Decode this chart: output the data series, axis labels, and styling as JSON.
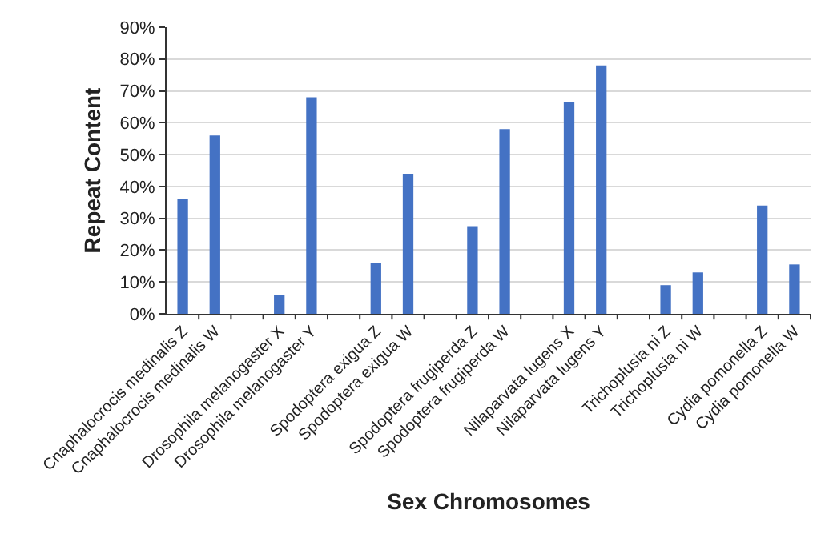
{
  "chart_data": {
    "type": "bar",
    "xlabel": "Sex Chromosomes",
    "ylabel": "Repeat Content",
    "categories": [
      "Cnaphalocrocis medinalis Z",
      "Cnaphalocrocis medinalis W",
      null,
      "Drosophila melanogaster X",
      "Drosophila melanogaster Y",
      null,
      "Spodoptera exigua Z",
      "Spodoptera exigua W",
      null,
      "Spodoptera frugiperda Z",
      "Spodoptera frugiperda W",
      null,
      "Nilaparvata lugens X",
      "Nilaparvata lugens Y",
      null,
      "Trichoplusia ni Z",
      "Trichoplusia ni W",
      null,
      "Cydia pomonella Z",
      "Cydia pomonella W"
    ],
    "values": [
      36,
      56,
      null,
      6,
      68,
      null,
      16,
      44,
      null,
      27.5,
      58,
      null,
      66.5,
      78,
      null,
      9,
      13,
      null,
      34,
      15.5
    ],
    "color": "#4472c4",
    "ylim": [
      0,
      90
    ],
    "yticks": [
      {
        "value": 0,
        "label": "0%"
      },
      {
        "value": 10,
        "label": "10%"
      },
      {
        "value": 20,
        "label": "20%"
      },
      {
        "value": 30,
        "label": "30%"
      },
      {
        "value": 40,
        "label": "40%"
      },
      {
        "value": 50,
        "label": "50%"
      },
      {
        "value": 60,
        "label": "60%"
      },
      {
        "value": 70,
        "label": "70%"
      },
      {
        "value": 80,
        "label": "80%"
      },
      {
        "value": 90,
        "label": "90%"
      }
    ],
    "grid": "y"
  }
}
